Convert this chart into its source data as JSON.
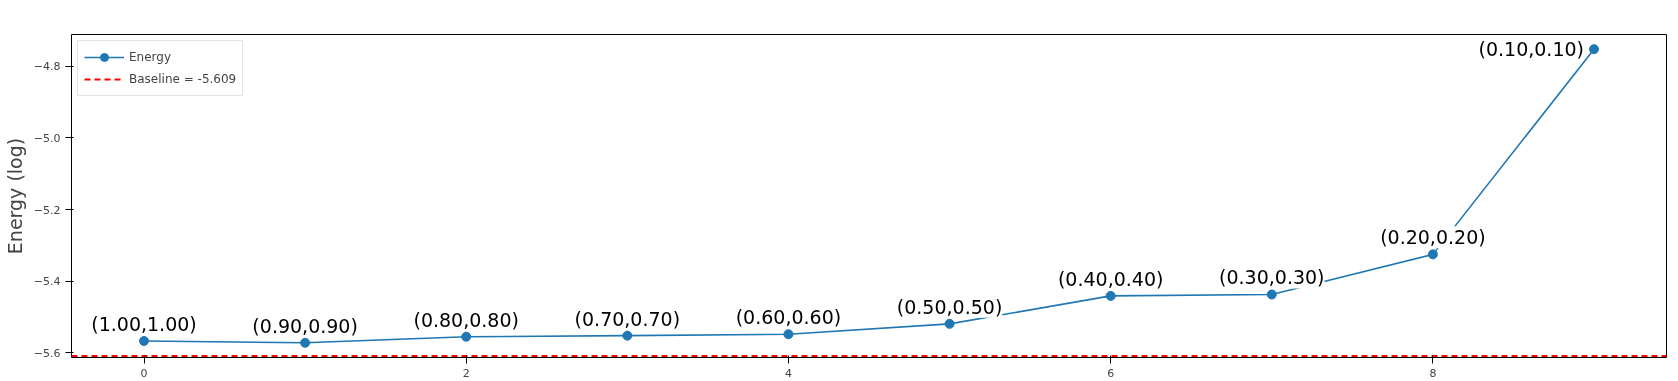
{
  "chart_data": {
    "type": "line",
    "ylabel": "Energy (log)",
    "x": [
      0,
      1,
      2,
      3,
      4,
      5,
      6,
      7,
      8,
      9
    ],
    "series": [
      {
        "name": "Energy",
        "color": "#1f77b4",
        "values": [
          -5.567,
          -5.572,
          -5.555,
          -5.552,
          -5.548,
          -5.519,
          -5.441,
          -5.437,
          -5.325,
          -4.752
        ]
      }
    ],
    "xlim": [
      -0.45,
      9.45
    ],
    "xticks": [
      0,
      2,
      4,
      6,
      8
    ],
    "ylim": [
      -5.613,
      -4.711
    ],
    "yticks": [
      {
        "value": -5.6,
        "label": "−5.6"
      },
      {
        "value": -5.4,
        "label": "−5.4"
      },
      {
        "value": -5.2,
        "label": "−5.2"
      },
      {
        "value": -5.0,
        "label": "−5.0"
      },
      {
        "value": -4.8,
        "label": "−4.8"
      }
    ],
    "ref_lines": [
      {
        "axis": "y",
        "value": -5.609,
        "label": "Baseline = -5.609",
        "color": "#ff0000",
        "line_style": "dashed"
      }
    ],
    "annotations": [
      {
        "text": "(1.00,1.00)",
        "x": 0,
        "y": -5.567
      },
      {
        "text": "(0.90,0.90)",
        "x": 1,
        "y": -5.572
      },
      {
        "text": "(0.80,0.80)",
        "x": 2,
        "y": -5.555
      },
      {
        "text": "(0.70,0.70)",
        "x": 3,
        "y": -5.552
      },
      {
        "text": "(0.60,0.60)",
        "x": 4,
        "y": -5.548
      },
      {
        "text": "(0.50,0.50)",
        "x": 5,
        "y": -5.519
      },
      {
        "text": "(0.40,0.40)",
        "x": 6,
        "y": -5.441
      },
      {
        "text": "(0.30,0.30)",
        "x": 7,
        "y": -5.437
      },
      {
        "text": "(0.20,0.20)",
        "x": 8,
        "y": -5.325
      },
      {
        "text": "(0.10,0.10)",
        "x": 9,
        "y": -4.752
      }
    ],
    "legend": "top left",
    "marker": "circle",
    "line_style": "solid",
    "grid": false
  }
}
